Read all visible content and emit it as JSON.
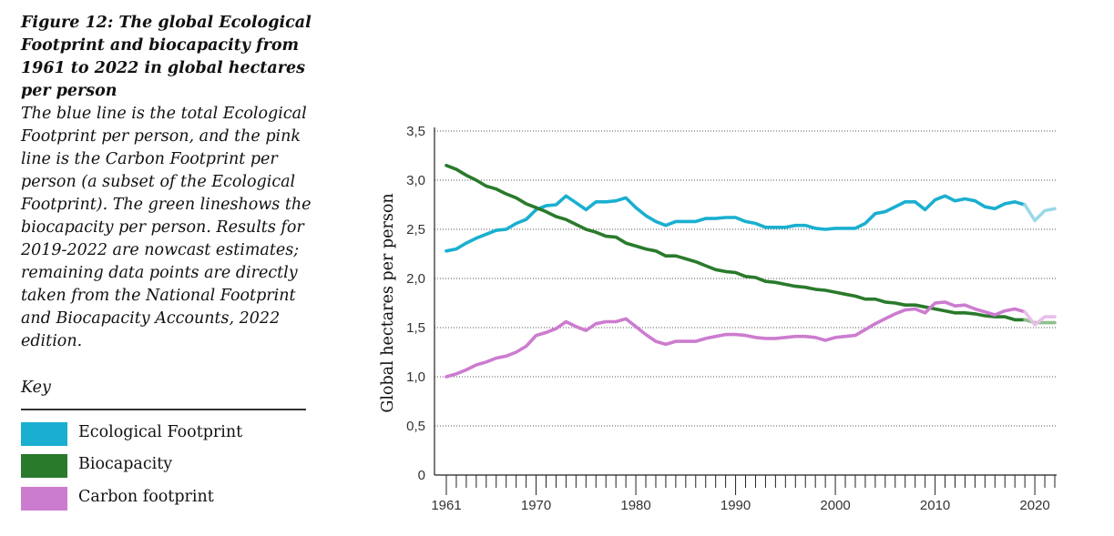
{
  "caption": {
    "title": "Figure 12: The global Ecological Footprint and biocapacity from 1961 to 2022 in global hectares per person",
    "body": "The blue line is the total Ecological Footprint per person, and the pink line is the Carbon Footprint per person (a subset of the Ecological Footprint). The green lineshows the biocapacity per person. Results for 2019-2022 are nowcast estimates; remaining data points are directly taken from the National Footprint and Biocapacity Accounts, 2022 edition."
  },
  "key": {
    "label": "Key",
    "items": [
      {
        "label": "Ecological Footprint",
        "color": "#1aafd0"
      },
      {
        "label": "Biocapacity",
        "color": "#2a7a2c"
      },
      {
        "label": "Carbon footprint",
        "color": "#cc7ccf"
      }
    ]
  },
  "chart_data": {
    "type": "line",
    "title": "",
    "xlabel": "",
    "ylabel": "Global hectares per person",
    "xlim": [
      1961,
      2022
    ],
    "ylim": [
      0,
      3.5
    ],
    "x_tick_labels": [
      "1961",
      "1970",
      "1980",
      "1990",
      "2000",
      "2010",
      "2020"
    ],
    "y_tick_labels": [
      "0",
      "0,5",
      "1,0",
      "1,5",
      "2,0",
      "2,5",
      "3,0",
      "3,5"
    ],
    "grid": "horizontal dotted",
    "nowcast_from": 2019,
    "nowcast_colors": {
      "Ecological Footprint": "#9ad9e6",
      "Biocapacity": "#8fbf8d",
      "Carbon footprint": "#e8bfe9"
    },
    "x": [
      1961,
      1962,
      1963,
      1964,
      1965,
      1966,
      1967,
      1968,
      1969,
      1970,
      1971,
      1972,
      1973,
      1974,
      1975,
      1976,
      1977,
      1978,
      1979,
      1980,
      1981,
      1982,
      1983,
      1984,
      1985,
      1986,
      1987,
      1988,
      1989,
      1990,
      1991,
      1992,
      1993,
      1994,
      1995,
      1996,
      1997,
      1998,
      1999,
      2000,
      2001,
      2002,
      2003,
      2004,
      2005,
      2006,
      2007,
      2008,
      2009,
      2010,
      2011,
      2012,
      2013,
      2014,
      2015,
      2016,
      2017,
      2018,
      2019,
      2020,
      2021,
      2022
    ],
    "series": [
      {
        "name": "Ecological Footprint",
        "color": "#1aafd0",
        "values": [
          2.28,
          2.3,
          2.36,
          2.41,
          2.45,
          2.49,
          2.5,
          2.56,
          2.6,
          2.7,
          2.74,
          2.75,
          2.84,
          2.77,
          2.7,
          2.78,
          2.78,
          2.79,
          2.82,
          2.72,
          2.64,
          2.58,
          2.54,
          2.58,
          2.58,
          2.58,
          2.61,
          2.61,
          2.62,
          2.62,
          2.58,
          2.56,
          2.52,
          2.52,
          2.52,
          2.54,
          2.54,
          2.51,
          2.5,
          2.51,
          2.51,
          2.51,
          2.56,
          2.66,
          2.68,
          2.73,
          2.78,
          2.78,
          2.7,
          2.8,
          2.84,
          2.79,
          2.81,
          2.79,
          2.73,
          2.71,
          2.76,
          2.78,
          2.75,
          2.59,
          2.69,
          2.71
        ]
      },
      {
        "name": "Biocapacity",
        "color": "#2a7a2c",
        "values": [
          3.15,
          3.11,
          3.05,
          3.0,
          2.94,
          2.91,
          2.86,
          2.82,
          2.76,
          2.72,
          2.68,
          2.63,
          2.6,
          2.55,
          2.5,
          2.47,
          2.43,
          2.42,
          2.36,
          2.33,
          2.3,
          2.28,
          2.23,
          2.23,
          2.2,
          2.17,
          2.13,
          2.09,
          2.07,
          2.06,
          2.02,
          2.01,
          1.97,
          1.96,
          1.94,
          1.92,
          1.91,
          1.89,
          1.88,
          1.86,
          1.84,
          1.82,
          1.79,
          1.79,
          1.76,
          1.75,
          1.73,
          1.73,
          1.71,
          1.69,
          1.67,
          1.65,
          1.65,
          1.64,
          1.62,
          1.61,
          1.61,
          1.58,
          1.58,
          1.55,
          1.55,
          1.55
        ]
      },
      {
        "name": "Carbon footprint",
        "color": "#cc7ccf",
        "values": [
          1.0,
          1.03,
          1.07,
          1.12,
          1.15,
          1.19,
          1.21,
          1.25,
          1.31,
          1.42,
          1.45,
          1.49,
          1.56,
          1.51,
          1.47,
          1.54,
          1.56,
          1.56,
          1.59,
          1.51,
          1.43,
          1.36,
          1.33,
          1.36,
          1.36,
          1.36,
          1.39,
          1.41,
          1.43,
          1.43,
          1.42,
          1.4,
          1.39,
          1.39,
          1.4,
          1.41,
          1.41,
          1.4,
          1.37,
          1.4,
          1.41,
          1.42,
          1.48,
          1.54,
          1.59,
          1.64,
          1.68,
          1.69,
          1.65,
          1.75,
          1.76,
          1.72,
          1.73,
          1.69,
          1.66,
          1.63,
          1.67,
          1.69,
          1.66,
          1.53,
          1.61,
          1.61
        ]
      }
    ]
  }
}
